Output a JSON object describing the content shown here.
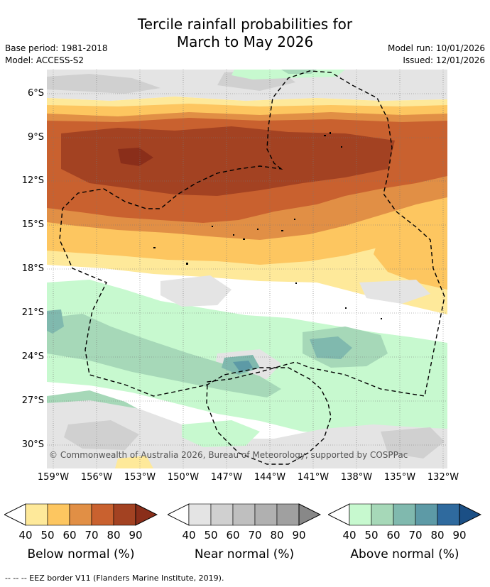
{
  "title_line1": "Tercile rainfall probabilities for",
  "title_line2": "March to May 2026",
  "base_period": "Base period: 1981-2018",
  "model": "Model: ACCESS-S2",
  "model_run": "Model run: 10/01/2026",
  "issued": "Issued: 12/01/2026",
  "copyright": "© Commonwealth of Australia 2026, Bureau of Meteorology, supported by COSPPac",
  "map": {
    "lat_labels": [
      "6°S",
      "9°S",
      "12°S",
      "15°S",
      "18°S",
      "21°S",
      "24°S",
      "27°S",
      "30°S"
    ],
    "lon_labels": [
      "159°W",
      "156°W",
      "153°W",
      "150°W",
      "147°W",
      "144°W",
      "141°W",
      "138°W",
      "135°W",
      "132°W"
    ],
    "extent": {
      "lon_min": -159.3,
      "lon_max": -131.7,
      "lat_max": -4.7,
      "lat_min": -31.5
    }
  },
  "colorbars": [
    {
      "name": "below",
      "title": "Below normal (%)",
      "ticks": [
        "40",
        "50",
        "60",
        "70",
        "80",
        "90"
      ],
      "colors": [
        "#ffffff",
        "#fee99a",
        "#fdc660",
        "#e18f45",
        "#c9612f",
        "#a34222",
        "#8a2e1a"
      ]
    },
    {
      "name": "near",
      "title": "Near normal (%)",
      "ticks": [
        "40",
        "50",
        "60",
        "70",
        "80",
        "90"
      ],
      "colors": [
        "#ffffff",
        "#e4e4e4",
        "#d0d0d0",
        "#bfbfbf",
        "#b0b0b0",
        "#a0a0a0",
        "#888888"
      ]
    },
    {
      "name": "above",
      "title": "Above normal (%)",
      "ticks": [
        "40",
        "50",
        "60",
        "70",
        "80",
        "90"
      ],
      "colors": [
        "#ffffff",
        "#c7f9cf",
        "#a6d8b8",
        "#80b9ae",
        "#5d9aa6",
        "#2f6a9e",
        "#1b4f85"
      ]
    }
  ],
  "footnote": "--  --  -- EEZ border V11 (Flanders Marine Institute, 2019)."
}
